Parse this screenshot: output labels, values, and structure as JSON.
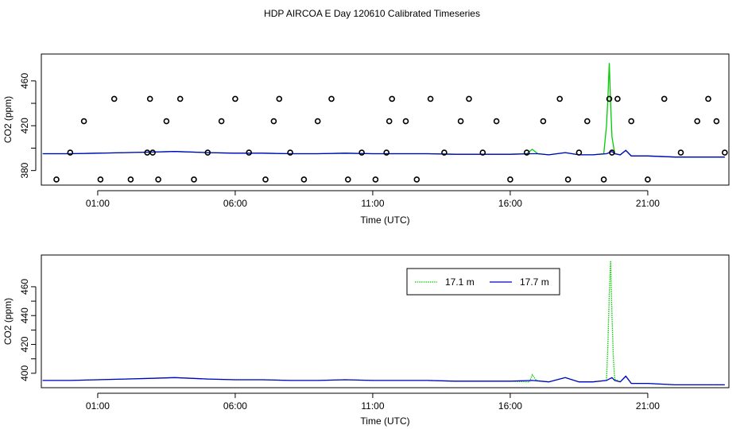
{
  "title": "HDP AIRCOA E  Day 120610  Calibrated Timeseries",
  "chart_data": [
    {
      "type": "line+scatter",
      "xlabel": "Time (UTC)",
      "ylabel": "CO2 (ppm)",
      "xlim": [
        -1.05,
        23.95
      ],
      "ylim": [
        367,
        484
      ],
      "xticks": [
        1,
        6,
        11,
        16,
        21
      ],
      "xtick_labels": [
        "01:00",
        "06:00",
        "11:00",
        "16:00",
        "21:00"
      ],
      "yticks": [
        380,
        420,
        460
      ],
      "series": [
        {
          "color": "#00cc00",
          "x": [
            -1.0,
            0.0,
            1.0,
            2.0,
            3.0,
            3.8,
            5.0,
            6.0,
            7.0,
            8.0,
            9.0,
            10.0,
            11.0,
            12.0,
            13.0,
            14.0,
            15.0,
            16.0,
            16.6,
            16.8,
            17.0,
            17.4,
            18.0,
            18.5,
            19.0,
            19.4,
            19.5,
            19.55,
            19.6,
            19.65,
            19.7,
            19.8,
            20.0,
            20.2,
            20.4,
            21.0,
            22.0,
            23.0,
            23.8
          ],
          "y": [
            395,
            395,
            395.5,
            396,
            396.5,
            397,
            396,
            395.5,
            395.5,
            395,
            395,
            395.5,
            395,
            395,
            395,
            394.5,
            394.5,
            394.5,
            395,
            399,
            395,
            394,
            396,
            394,
            394,
            395,
            420,
            445,
            476,
            440,
            410,
            395,
            394,
            398,
            393,
            393,
            392,
            392,
            392
          ]
        },
        {
          "color": "#0000cc",
          "x": [
            -1.0,
            0.0,
            1.0,
            2.0,
            3.0,
            3.8,
            5.0,
            6.0,
            7.0,
            8.0,
            9.0,
            10.0,
            11.0,
            12.0,
            13.0,
            14.0,
            15.0,
            16.0,
            16.8,
            17.0,
            17.4,
            18.0,
            18.5,
            19.0,
            19.5,
            19.6,
            19.7,
            19.8,
            20.0,
            20.2,
            20.4,
            21.0,
            22.0,
            23.0,
            23.8
          ],
          "y": [
            395,
            395,
            395.5,
            396,
            396.5,
            397,
            396,
            395.5,
            395.5,
            395,
            395,
            395.5,
            395,
            395,
            395,
            394.5,
            394.5,
            394.5,
            395,
            395,
            394,
            396,
            394,
            394,
            395,
            396,
            397,
            395,
            394,
            398,
            393,
            393,
            392,
            392,
            392
          ]
        }
      ],
      "points": {
        "x": [
          -0.5,
          0.0,
          0.5,
          1.1,
          1.6,
          2.2,
          2.8,
          2.9,
          3.0,
          3.2,
          3.5,
          4.0,
          4.5,
          5.0,
          5.5,
          6.0,
          6.5,
          7.1,
          7.4,
          7.6,
          8.0,
          8.5,
          9.0,
          9.5,
          10.1,
          10.6,
          11.1,
          11.5,
          11.6,
          11.7,
          12.2,
          12.6,
          13.1,
          13.6,
          14.2,
          14.5,
          15.0,
          15.5,
          16.0,
          16.6,
          17.2,
          17.8,
          18.1,
          18.5,
          18.8,
          19.4,
          19.6,
          19.7,
          19.9,
          20.4,
          21.0,
          21.6,
          22.2,
          22.8,
          23.2,
          23.5,
          23.8
        ],
        "y": [
          372,
          396,
          424,
          372,
          444,
          372,
          396,
          444,
          396,
          372,
          424,
          444,
          372,
          396,
          424,
          444,
          396,
          372,
          424,
          444,
          396,
          372,
          424,
          444,
          372,
          396,
          372,
          396,
          424,
          444,
          424,
          372,
          444,
          396,
          424,
          444,
          396,
          424,
          372,
          396,
          424,
          444,
          372,
          396,
          424,
          372,
          444,
          396,
          444,
          424,
          372,
          444,
          396,
          424,
          444,
          424,
          396
        ]
      }
    },
    {
      "type": "line",
      "xlabel": "Time (UTC)",
      "ylabel": "CO2 (ppm)",
      "xlim": [
        -1.05,
        23.95
      ],
      "ylim": [
        390,
        482
      ],
      "xticks": [
        1,
        6,
        11,
        16,
        21
      ],
      "xtick_labels": [
        "01:00",
        "06:00",
        "11:00",
        "16:00",
        "21:00"
      ],
      "yticks": [
        400,
        420,
        440,
        460
      ],
      "legend": {
        "placement": "top-center-right",
        "items": [
          "17.1 m",
          "17.7 m"
        ]
      },
      "series": [
        {
          "name": "17.1 m",
          "color": "#00cc00",
          "x": [
            -1.0,
            0.0,
            1.0,
            2.0,
            3.0,
            3.8,
            5.0,
            6.0,
            7.0,
            8.0,
            9.0,
            10.0,
            11.0,
            12.0,
            13.0,
            14.0,
            15.0,
            16.0,
            16.7,
            16.8,
            16.95,
            17.4,
            18.0,
            18.5,
            19.0,
            19.5,
            19.55,
            19.6,
            19.65,
            19.7,
            19.75,
            19.8,
            20.0,
            20.2,
            20.4,
            21.0,
            22.0,
            23.0,
            23.8
          ],
          "y": [
            395,
            395,
            395.5,
            396,
            396.5,
            397,
            396,
            395.5,
            395.5,
            395,
            395,
            395.5,
            395,
            395,
            395,
            394.5,
            394.5,
            394.5,
            394,
            399,
            395,
            394,
            397,
            394,
            394,
            395,
            420,
            455,
            478,
            440,
            410,
            396,
            394,
            398,
            393,
            393,
            392,
            392,
            392
          ]
        },
        {
          "name": "17.7 m",
          "color": "#0000cc",
          "x": [
            -1.0,
            0.0,
            1.0,
            2.0,
            3.0,
            3.8,
            5.0,
            6.0,
            7.0,
            8.0,
            9.0,
            10.0,
            11.0,
            12.0,
            13.0,
            14.0,
            15.0,
            16.0,
            16.8,
            17.4,
            18.0,
            18.5,
            19.0,
            19.5,
            19.6,
            19.7,
            19.8,
            20.0,
            20.2,
            20.4,
            21.0,
            22.0,
            23.0,
            23.8
          ],
          "y": [
            395,
            395,
            395.5,
            396,
            396.5,
            397,
            396,
            395.5,
            395.5,
            395,
            395,
            395.5,
            395,
            395,
            395,
            394.5,
            394.5,
            394.5,
            395,
            394,
            397,
            394,
            394,
            395,
            396,
            397,
            395,
            394,
            398,
            393,
            393,
            392,
            392,
            392
          ]
        }
      ]
    }
  ]
}
